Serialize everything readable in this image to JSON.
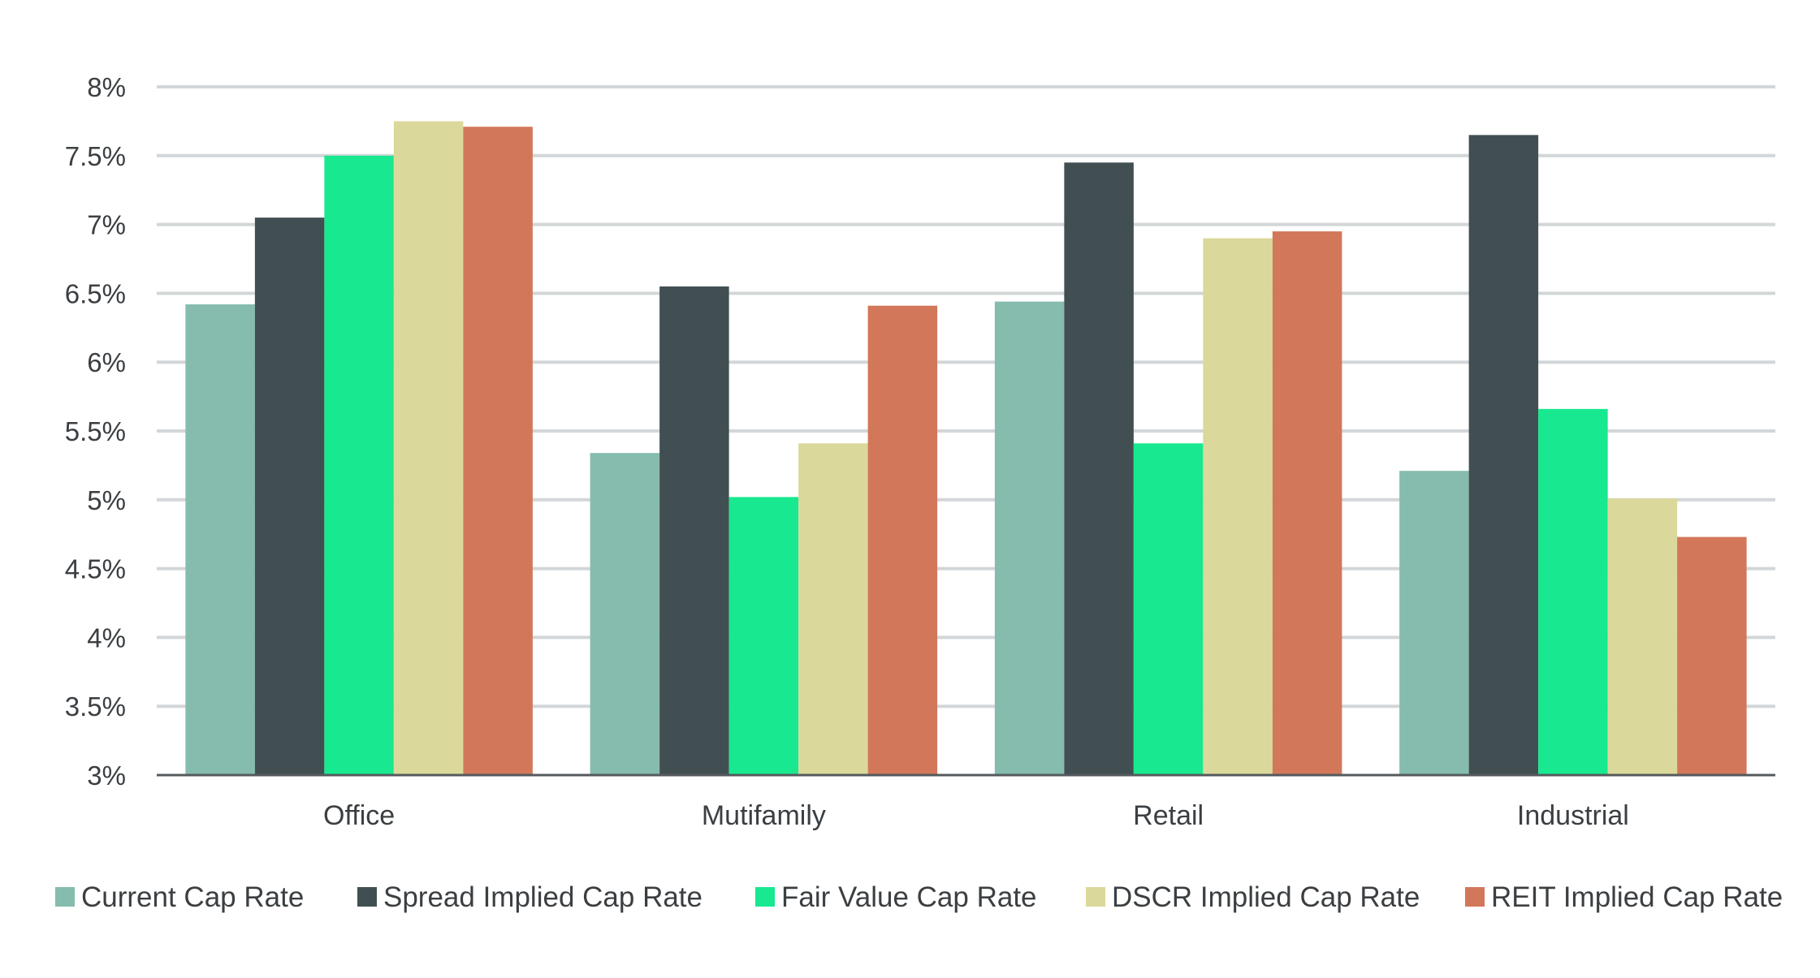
{
  "chart_data": {
    "type": "bar",
    "title": "",
    "xlabel": "",
    "ylabel": "",
    "ylim": [
      3,
      8
    ],
    "yticks": [
      3,
      3.5,
      4,
      4.5,
      5,
      5.5,
      6,
      6.5,
      7,
      7.5,
      8
    ],
    "ytick_labels": [
      "3%",
      "3.5%",
      "4%",
      "4.5%",
      "5%",
      "5.5%",
      "6%",
      "6.5%",
      "7%",
      "7.5%",
      "8%"
    ],
    "grid": true,
    "legend_position": "bottom",
    "categories": [
      "Office",
      "Mutifamily",
      "Retail",
      "Industrial"
    ],
    "series": [
      {
        "name": "Current Cap Rate",
        "color": "#85bcae",
        "values": [
          6.42,
          5.34,
          6.44,
          5.21
        ]
      },
      {
        "name": "Spread Implied Cap Rate",
        "color": "#414f52",
        "values": [
          7.05,
          6.55,
          7.45,
          7.65
        ]
      },
      {
        "name": "Fair Value Cap Rate",
        "color": "#18e88f",
        "values": [
          7.5,
          5.02,
          5.41,
          5.66
        ]
      },
      {
        "name": "DSCR Implied Cap Rate",
        "color": "#dbd89b",
        "values": [
          7.75,
          5.41,
          6.9,
          5.01
        ]
      },
      {
        "name": "REIT Implied Cap Rate",
        "color": "#d2775a",
        "values": [
          7.71,
          6.41,
          6.95,
          4.73
        ]
      }
    ]
  }
}
